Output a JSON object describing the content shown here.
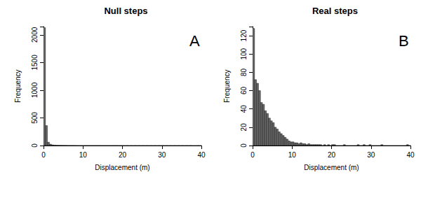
{
  "chart_data": [
    {
      "type": "histogram",
      "title": "Null steps",
      "annotation": "A",
      "xlabel": "Displacement (m)",
      "ylabel": "Frequency",
      "color": "#666666",
      "bins": [
        0,
        0.5,
        1,
        1.5,
        2,
        2.5,
        3,
        3.5,
        4,
        4.5,
        5,
        5.5,
        6,
        6.5,
        7,
        7.5,
        8,
        8.5,
        9,
        9.5,
        10,
        10.5,
        11,
        11.5,
        12,
        12.5,
        13,
        13.5,
        14,
        14.5,
        15,
        15.5,
        16,
        16.5,
        17,
        17.5,
        18,
        18.5,
        19,
        19.5,
        20,
        20.5,
        21,
        21.5,
        22,
        22.5,
        23,
        23.5,
        24,
        24.5,
        25,
        25.5,
        26,
        26.5,
        27,
        27.5,
        28,
        28.5,
        29,
        29.5,
        30,
        30.5,
        31,
        31.5,
        32,
        32.5,
        33,
        33.5,
        34,
        34.5,
        35,
        35.5,
        36,
        36.5,
        37,
        37.5,
        38,
        38.5,
        39,
        39.5,
        40
      ],
      "counts": [
        2130,
        360,
        60,
        25,
        12,
        8,
        6,
        5,
        4,
        4,
        3,
        3,
        2,
        2,
        2,
        2,
        1,
        1,
        1,
        1,
        1,
        1,
        1,
        1,
        1,
        1,
        1,
        1,
        1,
        1,
        1,
        1,
        1,
        1,
        1,
        1,
        1,
        1,
        1,
        1,
        1,
        0,
        1,
        0,
        1,
        0,
        1,
        0,
        1,
        0,
        1,
        0,
        1,
        0,
        1,
        0,
        1,
        0,
        1,
        0,
        1,
        0,
        1,
        0,
        1,
        0,
        1,
        0,
        1,
        0,
        1,
        0,
        1,
        0,
        1,
        0,
        0,
        0,
        1,
        0
      ],
      "xlim": [
        0,
        40
      ],
      "xticks": [
        0,
        10,
        20,
        30,
        40
      ],
      "ylim": [
        0,
        2150
      ],
      "yticks": [
        0,
        500,
        1000,
        1500,
        2000
      ]
    },
    {
      "type": "histogram",
      "title": "Real steps",
      "annotation": "B",
      "xlabel": "Displacement (m)",
      "ylabel": "Frequency",
      "color": "#666666",
      "bins": [
        0,
        0.5,
        1,
        1.5,
        2,
        2.5,
        3,
        3.5,
        4,
        4.5,
        5,
        5.5,
        6,
        6.5,
        7,
        7.5,
        8,
        8.5,
        9,
        9.5,
        10,
        10.5,
        11,
        11.5,
        12,
        12.5,
        13,
        13.5,
        14,
        14.5,
        15,
        15.5,
        16,
        16.5,
        17,
        17.5,
        18,
        18.5,
        19,
        19.5,
        20,
        20.5,
        21,
        21.5,
        22,
        22.5,
        23,
        23.5,
        24,
        24.5,
        25,
        25.5,
        26,
        26.5,
        27,
        27.5,
        28,
        28.5,
        29,
        29.5,
        30,
        30.5,
        31,
        31.5,
        32,
        32.5,
        33,
        33.5,
        34,
        34.5,
        35,
        35.5,
        36,
        36.5,
        37,
        37.5,
        38,
        38.5,
        39,
        39.5,
        40
      ],
      "counts": [
        128,
        72,
        68,
        60,
        47,
        45,
        38,
        35,
        30,
        27,
        25,
        20,
        18,
        15,
        13,
        11,
        9,
        7,
        5,
        4,
        4,
        3,
        3,
        2,
        3,
        2,
        2,
        1,
        2,
        1,
        1,
        1,
        1,
        1,
        1,
        0,
        1,
        0,
        1,
        0,
        1,
        1,
        0,
        0,
        0,
        0,
        1,
        0,
        0,
        0,
        0,
        0,
        0,
        1,
        0,
        0,
        1,
        0,
        0,
        1,
        0,
        0,
        0,
        0,
        0,
        1,
        0,
        0,
        0,
        0,
        0,
        0,
        0,
        0,
        0,
        0,
        0,
        0,
        1,
        0
      ],
      "xlim": [
        0,
        40
      ],
      "xticks": [
        0,
        10,
        20,
        30,
        40
      ],
      "ylim": [
        0,
        130
      ],
      "yticks": [
        0,
        20,
        40,
        60,
        80,
        100,
        120
      ]
    }
  ]
}
